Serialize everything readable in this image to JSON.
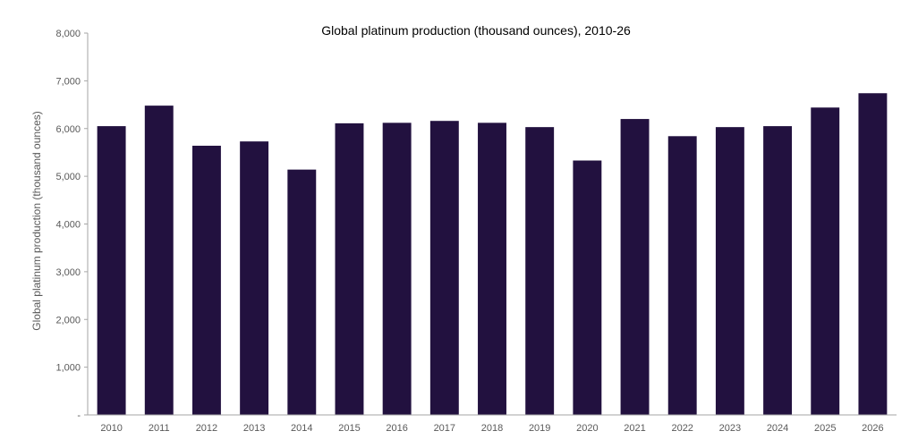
{
  "chart_data": {
    "type": "bar",
    "title": "Global platinum production (thousand ounces), 2010-26",
    "xlabel": "",
    "ylabel": "Global platinum production (thousand ounces)",
    "ylim": [
      0,
      8000
    ],
    "yticks": [
      0,
      1000,
      2000,
      3000,
      4000,
      5000,
      6000,
      7000,
      8000
    ],
    "ytick_labels": [
      "-",
      "1,000",
      "2,000",
      "3,000",
      "4,000",
      "5,000",
      "6,000",
      "7,000",
      "8,000"
    ],
    "categories": [
      "2010",
      "2011",
      "2012",
      "2013",
      "2014",
      "2015",
      "2016",
      "2017",
      "2018",
      "2019",
      "2020",
      "2021",
      "2022",
      "2023",
      "2024",
      "2025",
      "2026"
    ],
    "values": [
      6050,
      6480,
      5640,
      5730,
      5140,
      6110,
      6120,
      6160,
      6120,
      6030,
      5330,
      6200,
      5840,
      6030,
      6050,
      6440,
      6740
    ],
    "grid": false,
    "legend": "none",
    "colors": {
      "bar": "#22113f",
      "axis": "#a6a6a6",
      "tick_text": "#595959",
      "title_text": "#000000"
    }
  }
}
